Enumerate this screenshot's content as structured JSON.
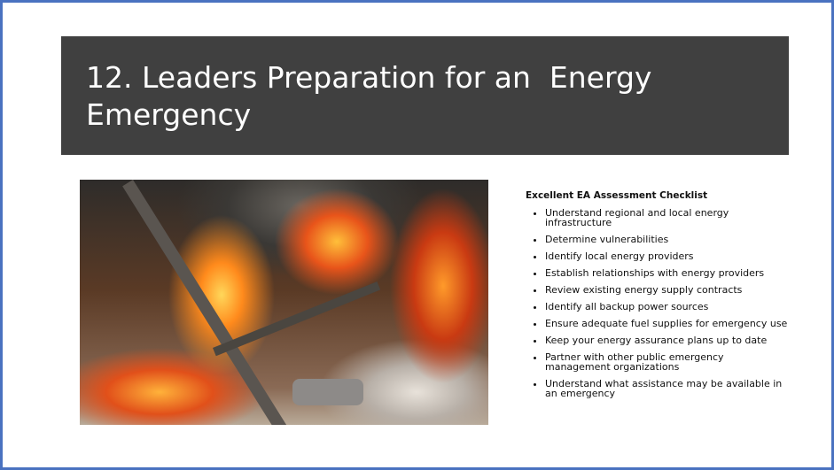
{
  "slide": {
    "title": "12. Leaders Preparation for an  Energy Emergency",
    "checklist": {
      "heading": "Excellent EA Assessment Checklist",
      "items": [
        "Understand regional and local energy infrastructure",
        "Determine vulnerabilities",
        "Identify local energy providers",
        "Establish relationships with energy providers",
        "Review existing energy supply contracts",
        "Identify all backup power sources",
        "Ensure adequate fuel supplies for emergency use",
        "Keep your energy assurance plans up to date",
        "Partner with other public emergency management organizations",
        "Understand what assistance may be available in an emergency"
      ]
    }
  }
}
